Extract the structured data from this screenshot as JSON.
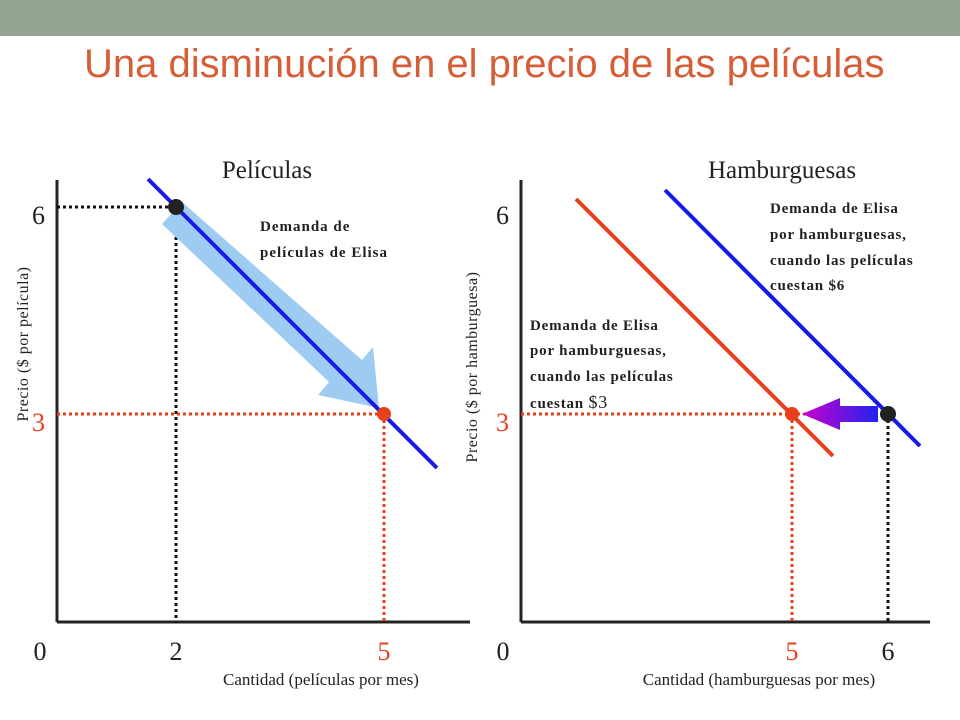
{
  "title": "Una disminución en el precio de las películas",
  "colors": {
    "top_bar": "#95a591",
    "title": "#d55e37",
    "blue_line": "#1a1ae8",
    "red_line": "#e8401c",
    "arrow_light": "#9ecbf2"
  },
  "chart_data": [
    {
      "type": "line",
      "title": "Películas",
      "xlabel": "Cantidad (películas por mes)",
      "ylabel": "Precio ($ por película)",
      "x_ticks": [
        "0",
        "2",
        "5"
      ],
      "y_ticks": [
        "6",
        "3"
      ],
      "series": [
        {
          "name": "Demanda de películas de Elisa",
          "points": [
            [
              1.6,
              6.4
            ],
            [
              6.5,
              1.6
            ]
          ]
        }
      ],
      "highlighted_points": [
        [
          2,
          6
        ],
        [
          5,
          3
        ]
      ],
      "annotation": "Demanda de películas de Elisa",
      "arrow": {
        "from": [
          2,
          6
        ],
        "to": [
          5,
          3
        ]
      }
    },
    {
      "type": "line",
      "title": "Hamburguesas",
      "xlabel": "Cantidad (hamburguesas por mes)",
      "ylabel": "Precio ($ por hamburguesa)",
      "x_ticks": [
        "0",
        "5",
        "6"
      ],
      "y_ticks": [
        "6",
        "3"
      ],
      "series": [
        {
          "name": "Demanda de Elisa por hamburguesas, cuando las películas cuestan $3",
          "points": [
            [
              0.6,
              6.2
            ],
            [
              5.4,
              2.4
            ]
          ]
        },
        {
          "name": "Demanda de Elisa por hamburguesas, cuando las películas cuestan $6",
          "points": [
            [
              1.5,
              6.3
            ],
            [
              6.3,
              2.4
            ]
          ]
        }
      ],
      "highlighted_points": [
        [
          5,
          3
        ],
        [
          6,
          3
        ]
      ],
      "annotations": [
        "Demanda de Elisa por hamburguesas, cuando las películas cuestan $6",
        "Demanda de Elisa por hamburguesas, cuando las películas cuestan $3"
      ],
      "arrow": {
        "from": [
          6,
          3
        ],
        "to": [
          5,
          3
        ]
      }
    }
  ],
  "labels": {
    "m_title": "Películas",
    "m_xlabel": "Cantidad (películas por mes)",
    "m_ylabel": "Precio ($ por película)",
    "m_y6": "6",
    "m_y3": "3",
    "m_x0": "0",
    "m_x2": "2",
    "m_x5": "5",
    "m_ann_1": "Demanda de",
    "m_ann_2": "películas de Elisa",
    "h_title": "Hamburguesas",
    "h_xlabel": "Cantidad (hamburguesas por mes)",
    "h_ylabel": "Precio ($ por hamburguesa)",
    "h_y6": "6",
    "h_y3": "3",
    "h_x0": "0",
    "h_x5": "5",
    "h_x6": "6",
    "h_ann6_1": "Demanda de Elisa",
    "h_ann6_2": "por hamburguesas,",
    "h_ann6_3": "cuando las películas",
    "h_ann6_4": "cuestan $6",
    "h_ann3_1": "Demanda de Elisa",
    "h_ann3_2": "por hamburguesas,",
    "h_ann3_3": "cuando las películas",
    "h_ann3_4": "cuestan",
    "h_ann3_5": "$3"
  }
}
